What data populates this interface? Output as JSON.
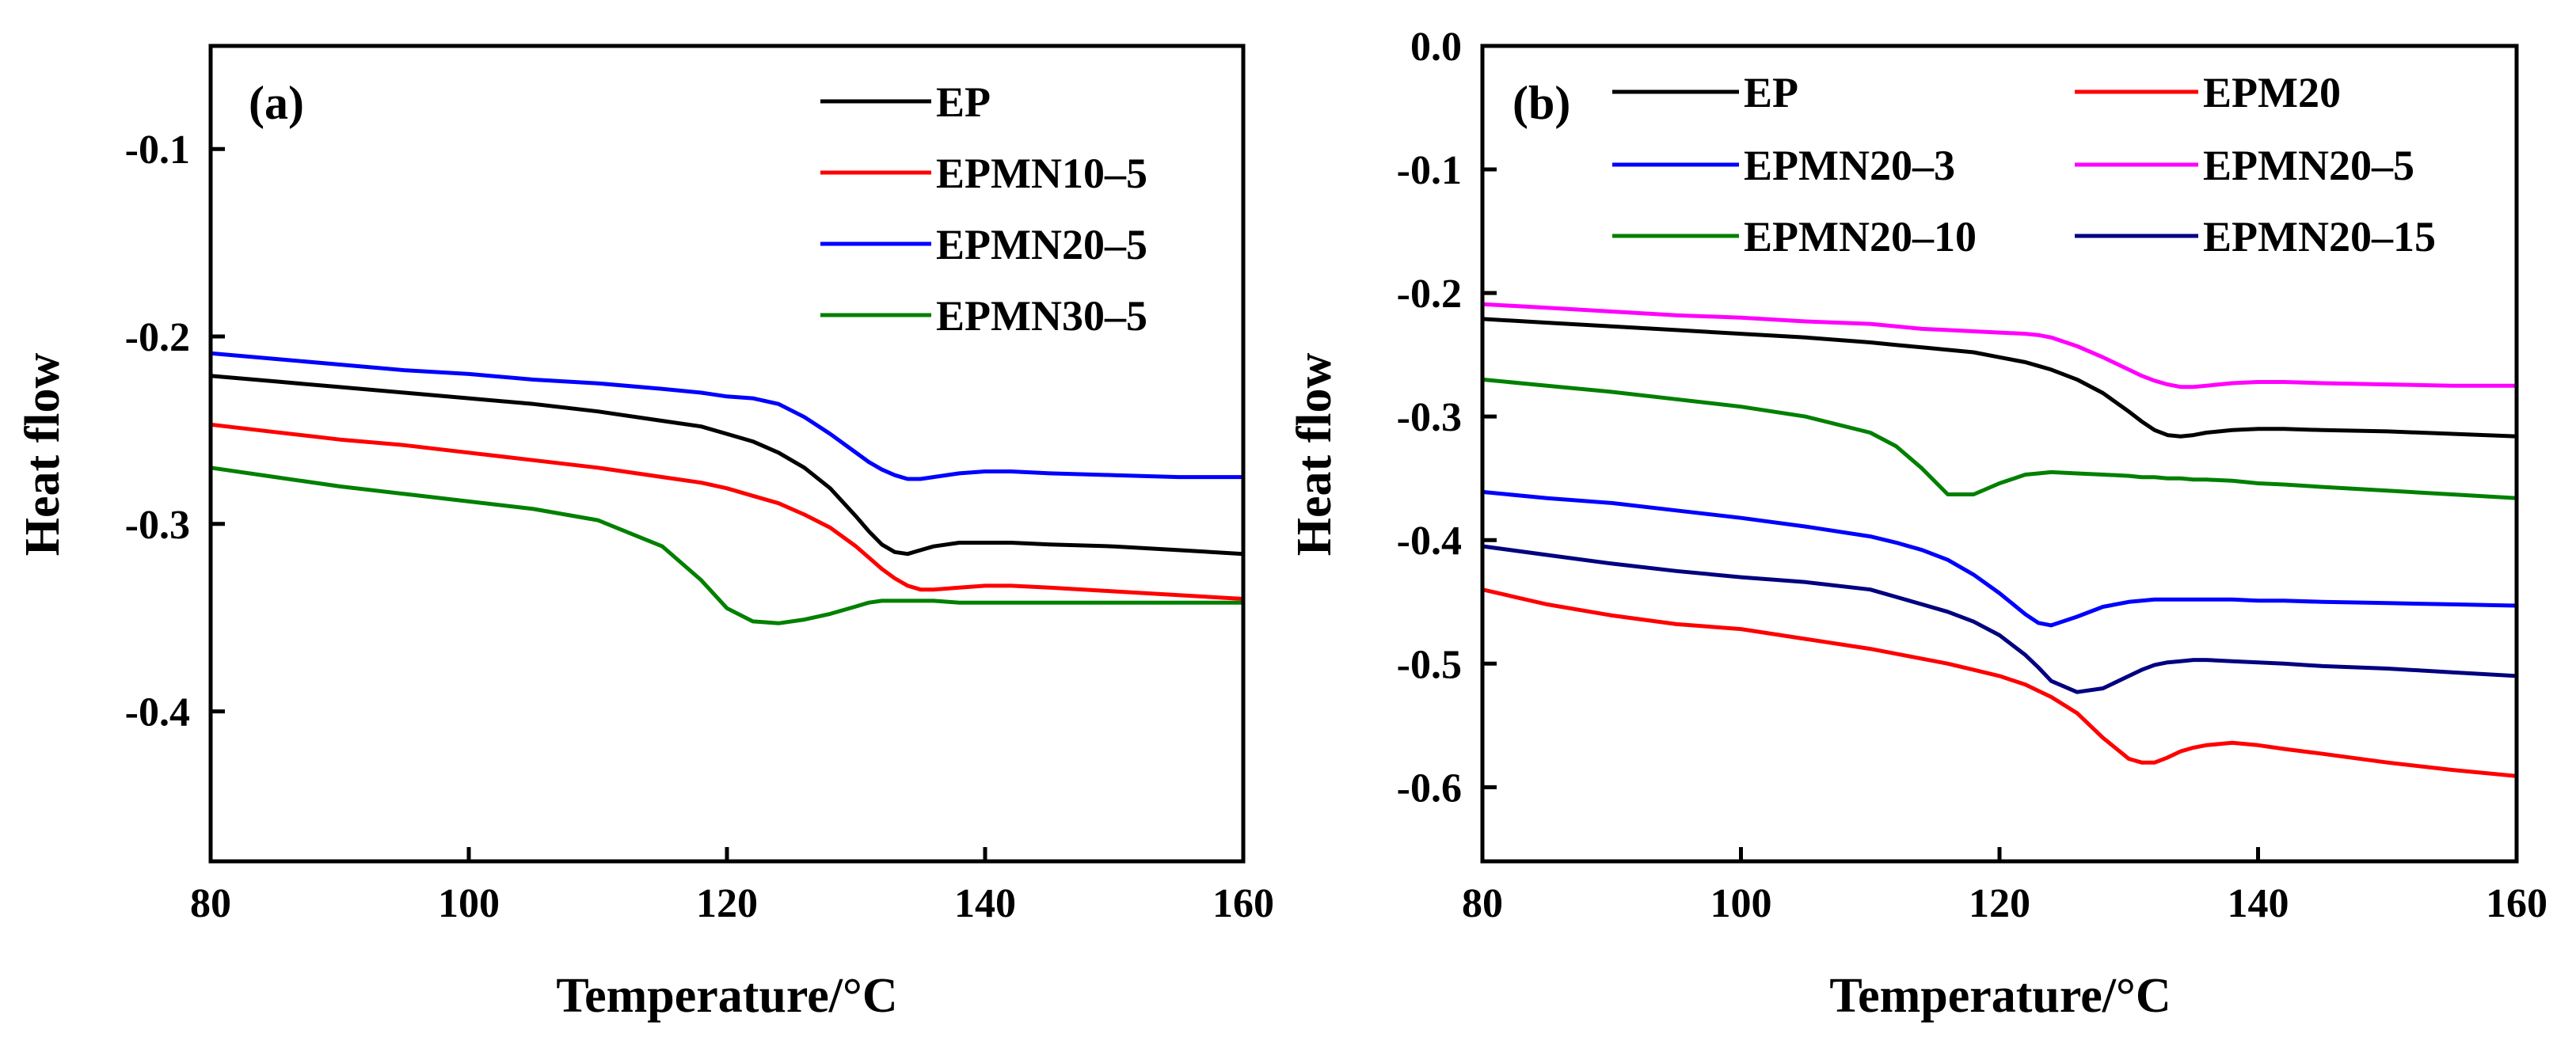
{
  "chart_data": [
    {
      "type": "line",
      "panel_label": "(a)",
      "xlabel": "Temperature/°C",
      "ylabel": "Heat flow",
      "xlim": [
        80,
        160
      ],
      "ylim": [
        -0.48,
        -0.045
      ],
      "x_ticks": [
        80,
        100,
        120,
        140,
        160
      ],
      "x_tick_labels": [
        "80",
        "100",
        "120",
        "140",
        "160"
      ],
      "y_ticks": [
        -0.1,
        -0.2,
        -0.3,
        -0.4
      ],
      "y_tick_labels": [
        "-0.1",
        "-0.2",
        "-0.3",
        "-0.4"
      ],
      "grid": false,
      "legend_position": "top-right",
      "x": [
        80,
        85,
        90,
        95,
        100,
        105,
        110,
        115,
        118,
        120,
        122,
        124,
        126,
        128,
        130,
        131,
        132,
        133,
        134,
        135,
        136,
        138,
        140,
        142,
        145,
        150,
        155,
        160
      ],
      "series": [
        {
          "name": "EP",
          "color": "#000000",
          "values": [
            -0.221,
            -0.224,
            -0.227,
            -0.23,
            -0.233,
            -0.236,
            -0.24,
            -0.245,
            -0.248,
            -0.252,
            -0.256,
            -0.262,
            -0.27,
            -0.281,
            -0.296,
            -0.304,
            -0.311,
            -0.315,
            -0.316,
            -0.314,
            -0.312,
            -0.31,
            -0.31,
            -0.31,
            -0.311,
            -0.312,
            -0.314,
            -0.316
          ]
        },
        {
          "name": "EPMN10–5",
          "color": "#ff0000",
          "values": [
            -0.247,
            -0.251,
            -0.255,
            -0.258,
            -0.262,
            -0.266,
            -0.27,
            -0.275,
            -0.278,
            -0.281,
            -0.285,
            -0.289,
            -0.295,
            -0.302,
            -0.312,
            -0.318,
            -0.324,
            -0.329,
            -0.333,
            -0.335,
            -0.335,
            -0.334,
            -0.333,
            -0.333,
            -0.334,
            -0.336,
            -0.338,
            -0.34
          ]
        },
        {
          "name": "EPMN20–5",
          "color": "#0000ff",
          "values": [
            -0.209,
            -0.212,
            -0.215,
            -0.218,
            -0.22,
            -0.223,
            -0.225,
            -0.228,
            -0.23,
            -0.232,
            -0.233,
            -0.236,
            -0.243,
            -0.252,
            -0.262,
            -0.267,
            -0.271,
            -0.274,
            -0.276,
            -0.276,
            -0.275,
            -0.273,
            -0.272,
            -0.272,
            -0.273,
            -0.274,
            -0.275,
            -0.275
          ]
        },
        {
          "name": "EPMN30–5",
          "color": "#008000",
          "values": [
            -0.27,
            -0.275,
            -0.28,
            -0.284,
            -0.288,
            -0.292,
            -0.298,
            -0.312,
            -0.33,
            -0.345,
            -0.352,
            -0.353,
            -0.351,
            -0.348,
            -0.344,
            -0.342,
            -0.341,
            -0.341,
            -0.341,
            -0.341,
            -0.341,
            -0.342,
            -0.342,
            -0.342,
            -0.342,
            -0.342,
            -0.342,
            -0.342
          ]
        }
      ]
    },
    {
      "type": "line",
      "panel_label": "(b)",
      "xlabel": "Temperature/°C",
      "ylabel": "Heat flow",
      "xlim": [
        80,
        160
      ],
      "ylim": [
        -0.66,
        0.0
      ],
      "x_ticks": [
        80,
        100,
        120,
        140,
        160
      ],
      "x_tick_labels": [
        "80",
        "100",
        "120",
        "140",
        "160"
      ],
      "y_ticks": [
        0.0,
        -0.1,
        -0.2,
        -0.3,
        -0.4,
        -0.5,
        -0.6
      ],
      "y_tick_labels": [
        "0.0",
        "-0.1",
        "-0.2",
        "-0.3",
        "-0.4",
        "-0.5",
        "-0.6"
      ],
      "grid": false,
      "legend_position": "top",
      "x": [
        80,
        85,
        90,
        95,
        100,
        105,
        110,
        112,
        114,
        116,
        118,
        120,
        122,
        123,
        124,
        126,
        128,
        130,
        131,
        132,
        133,
        134,
        135,
        136,
        138,
        140,
        142,
        145,
        150,
        155,
        160
      ],
      "series": [
        {
          "name": "EP",
          "color": "#000000",
          "values": [
            -0.221,
            -0.224,
            -0.227,
            -0.23,
            -0.233,
            -0.236,
            -0.24,
            -0.242,
            -0.244,
            -0.246,
            -0.248,
            -0.252,
            -0.256,
            -0.259,
            -0.262,
            -0.27,
            -0.281,
            -0.296,
            -0.304,
            -0.311,
            -0.315,
            -0.316,
            -0.315,
            -0.313,
            -0.311,
            -0.31,
            -0.31,
            -0.311,
            -0.312,
            -0.314,
            -0.316
          ]
        },
        {
          "name": "EPM20",
          "color": "#ff0000",
          "values": [
            -0.44,
            -0.452,
            -0.461,
            -0.468,
            -0.472,
            -0.48,
            -0.488,
            -0.492,
            -0.496,
            -0.5,
            -0.505,
            -0.51,
            -0.517,
            -0.522,
            -0.527,
            -0.54,
            -0.56,
            -0.577,
            -0.58,
            -0.58,
            -0.576,
            -0.571,
            -0.568,
            -0.566,
            -0.564,
            -0.566,
            -0.569,
            -0.573,
            -0.58,
            -0.586,
            -0.591
          ]
        },
        {
          "name": "EPMN20–3",
          "color": "#0000ff",
          "values": [
            -0.361,
            -0.366,
            -0.37,
            -0.376,
            -0.382,
            -0.389,
            -0.397,
            -0.402,
            -0.408,
            -0.416,
            -0.428,
            -0.443,
            -0.46,
            -0.467,
            -0.469,
            -0.462,
            -0.454,
            -0.45,
            -0.449,
            -0.448,
            -0.448,
            -0.448,
            -0.448,
            -0.448,
            -0.448,
            -0.449,
            -0.449,
            -0.45,
            -0.451,
            -0.452,
            -0.453
          ]
        },
        {
          "name": "EPMN20–5",
          "color": "#ff00ff",
          "values": [
            -0.209,
            -0.212,
            -0.215,
            -0.218,
            -0.22,
            -0.223,
            -0.225,
            -0.227,
            -0.229,
            -0.23,
            -0.231,
            -0.232,
            -0.233,
            -0.234,
            -0.236,
            -0.243,
            -0.252,
            -0.262,
            -0.267,
            -0.271,
            -0.274,
            -0.276,
            -0.276,
            -0.275,
            -0.273,
            -0.272,
            -0.272,
            -0.273,
            -0.274,
            -0.275,
            -0.275
          ]
        },
        {
          "name": "EPMN20–10",
          "color": "#008000",
          "values": [
            -0.27,
            -0.275,
            -0.28,
            -0.286,
            -0.292,
            -0.3,
            -0.313,
            -0.324,
            -0.342,
            -0.363,
            -0.363,
            -0.354,
            -0.347,
            -0.346,
            -0.345,
            -0.346,
            -0.347,
            -0.348,
            -0.349,
            -0.349,
            -0.35,
            -0.35,
            -0.351,
            -0.351,
            -0.352,
            -0.354,
            -0.355,
            -0.357,
            -0.36,
            -0.363,
            -0.366
          ]
        },
        {
          "name": "EPMN20–15",
          "color": "#000080",
          "values": [
            -0.405,
            -0.412,
            -0.419,
            -0.425,
            -0.43,
            -0.434,
            -0.44,
            -0.446,
            -0.452,
            -0.458,
            -0.466,
            -0.477,
            -0.493,
            -0.503,
            -0.514,
            -0.523,
            -0.52,
            -0.51,
            -0.505,
            -0.501,
            -0.499,
            -0.498,
            -0.497,
            -0.497,
            -0.498,
            -0.499,
            -0.5,
            -0.502,
            -0.504,
            -0.507,
            -0.51
          ]
        }
      ]
    }
  ]
}
